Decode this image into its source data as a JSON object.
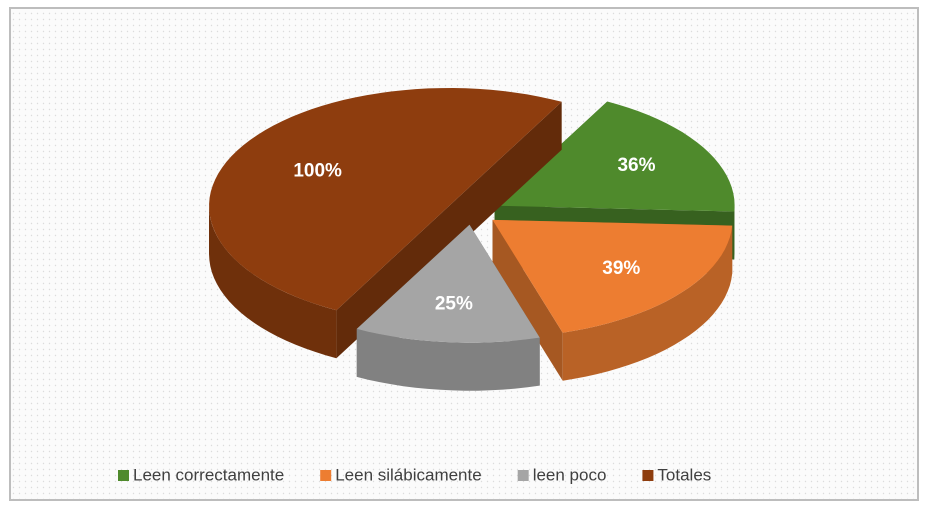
{
  "chart_data": {
    "type": "pie3d",
    "categories": [
      "Leen correctamente",
      "Leen silábicamente",
      "leen poco",
      "Totales"
    ],
    "values": [
      36,
      39,
      25,
      100
    ],
    "value_labels": [
      "36%",
      "39%",
      "25%",
      "100%"
    ],
    "colors": [
      "#4f8a2c",
      "#ed7d31",
      "#a5a5a5",
      "#8e3d0e"
    ],
    "legend": "bottom"
  }
}
